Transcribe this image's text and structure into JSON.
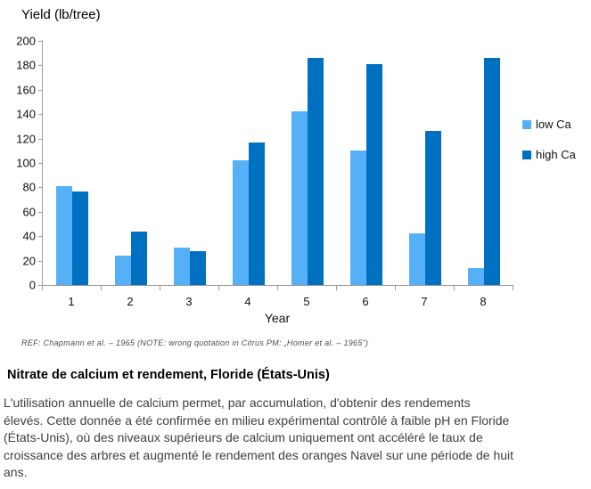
{
  "chart_data": {
    "type": "bar",
    "title": "Yield (lb/tree)",
    "xlabel": "Year",
    "ylabel": "Yield (lb/tree)",
    "categories": [
      "1",
      "2",
      "3",
      "4",
      "5",
      "6",
      "7",
      "8"
    ],
    "series": [
      {
        "name": "low Ca",
        "color": "#55B0F7",
        "values": [
          81,
          24,
          31,
          102,
          142,
          110,
          42,
          14
        ]
      },
      {
        "name": "high Ca",
        "color": "#0070C0",
        "values": [
          77,
          44,
          28,
          117,
          186,
          181,
          126,
          186
        ]
      }
    ],
    "ylim": [
      0,
      200
    ],
    "ytick_step": 20,
    "grid": false,
    "legend_position": "right",
    "axis_color": "#9d9d9d",
    "annotation": "REF: Chapmann et al. – 1965 (NOTE: wrong quotation in Citrus PM: „Homer et al. – 1965”)"
  },
  "article": {
    "heading": "Nitrate de calcium et rendement, Floride (États-Unis)",
    "body": "L'utilisation annuelle de calcium permet, par accumulation, d'obtenir des rendements\nélevés. Cette donnée a été confirmée en milieu expérimental contrôlé à faible pH en Floride\n(États-Unis), où des niveaux supérieurs de calcium uniquement ont accéléré le taux de\ncroissance des arbres et augmenté le rendement des oranges Navel sur une période de huit\nans."
  }
}
